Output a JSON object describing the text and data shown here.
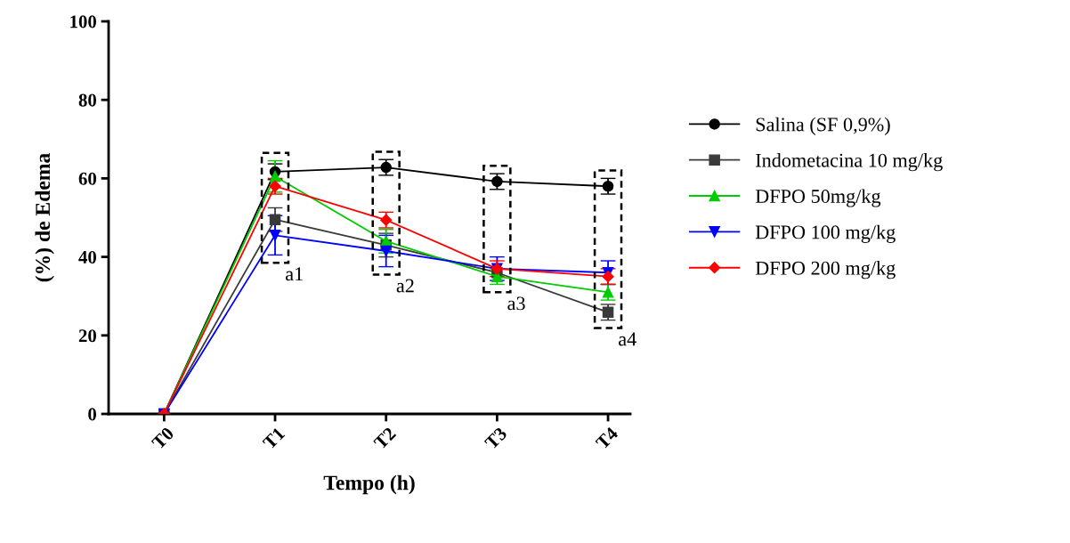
{
  "chart_data": {
    "type": "line",
    "xlabel": "Tempo (h)",
    "ylabel": "(%) de Edema",
    "categories": [
      "T0",
      "T1",
      "T2",
      "T3",
      "T4"
    ],
    "ylim": [
      0,
      100
    ],
    "yticks": [
      0,
      20,
      40,
      60,
      80,
      100
    ],
    "grid": false,
    "legend": "right",
    "series": [
      {
        "name": "Salina (SF 0,9%)",
        "color": "#000000",
        "marker": "circle",
        "values": [
          0,
          61.7,
          62.8,
          59.2,
          58.0
        ],
        "errors": [
          null,
          2,
          2,
          2,
          2
        ]
      },
      {
        "name": "Indometacina 10 mg/kg",
        "color": "#3a3a3a",
        "marker": "square",
        "values": [
          0,
          49.5,
          43,
          36,
          25.9
        ],
        "errors": [
          null,
          3,
          3,
          null,
          2
        ]
      },
      {
        "name": "DFPO 50mg/kg",
        "color": "#00cc00",
        "marker": "triangle",
        "values": [
          0,
          60.5,
          44,
          35,
          31
        ],
        "errors": [
          null,
          4,
          3,
          2,
          2
        ]
      },
      {
        "name": "DFPO 100 mg/kg",
        "color": "#0000ff",
        "marker": "triangle_down",
        "values": [
          0,
          45.5,
          41.5,
          37,
          36
        ],
        "errors": [
          null,
          5,
          4,
          3,
          3
        ]
      },
      {
        "name": "DFPO 200 mg/kg",
        "color": "#ff0000",
        "marker": "diamond",
        "values": [
          0,
          58,
          49.4,
          37,
          35
        ],
        "errors": [
          null,
          2,
          2,
          2,
          2
        ]
      }
    ],
    "annotations": [
      "a1",
      "a2",
      "a3",
      "a4"
    ]
  }
}
